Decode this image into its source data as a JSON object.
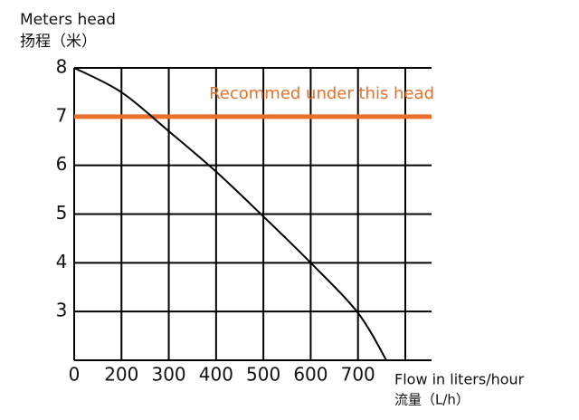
{
  "chart_data": {
    "type": "line",
    "y_title": "Meters head",
    "y_title_cn": "扬程（米）",
    "x_title": "Flow in liters/hour",
    "x_title_cn": "流量（L/h）",
    "origin_label": "0",
    "x": [
      100,
      200,
      300,
      400,
      500,
      600,
      700,
      760
    ],
    "series": [
      {
        "color": "#000000",
        "values": [
          8,
          7.5,
          6.7,
          5.87,
          4.95,
          4.0,
          2.97,
          2
        ]
      }
    ],
    "xlim": [
      100,
      800
    ],
    "ylim": [
      2,
      8
    ],
    "xticks": [
      200,
      300,
      400,
      500,
      600,
      700
    ],
    "yticks": [
      3,
      4,
      5,
      6,
      7,
      8
    ],
    "grid": true,
    "reference_line": {
      "value": 7,
      "label": "Recommed under this head",
      "color": "#e8702a"
    }
  }
}
